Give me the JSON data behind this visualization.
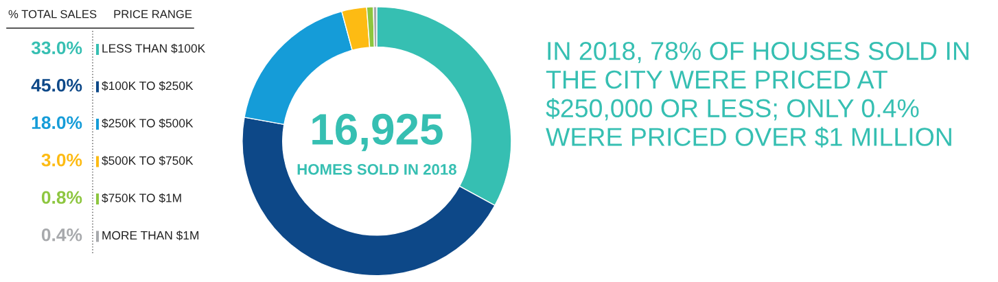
{
  "chart_data": {
    "type": "donut",
    "categories": [
      "LESS THAN $100K",
      "$100K TO $250K",
      "$250K TO $500K",
      "$500K TO $750K",
      "$750K TO $1M",
      "MORE THAN $1M"
    ],
    "values": [
      33.0,
      45.0,
      18.0,
      3.0,
      0.8,
      0.4
    ],
    "value_labels": [
      "33.0%",
      "45.0%",
      "18.0%",
      "3.0%",
      "0.8%",
      "0.4%"
    ],
    "colors": [
      "#36bfb2",
      "#0d4888",
      "#159cd8",
      "#fdbb13",
      "#8dc63f",
      "#a7a9ac"
    ],
    "legend": "left",
    "legend_title": "% TOTAL SALES",
    "annotations": [
      "PRICE RANGE",
      "16,925",
      "HOMES SOLD IN 2018",
      "IN 2018, 78% OF HOUSES SOLD IN THE CITY WERE PRICED AT $250,000 OR LESS; ONLY 0.4% WERE PRICED OVER $1 MILLION"
    ]
  }
}
